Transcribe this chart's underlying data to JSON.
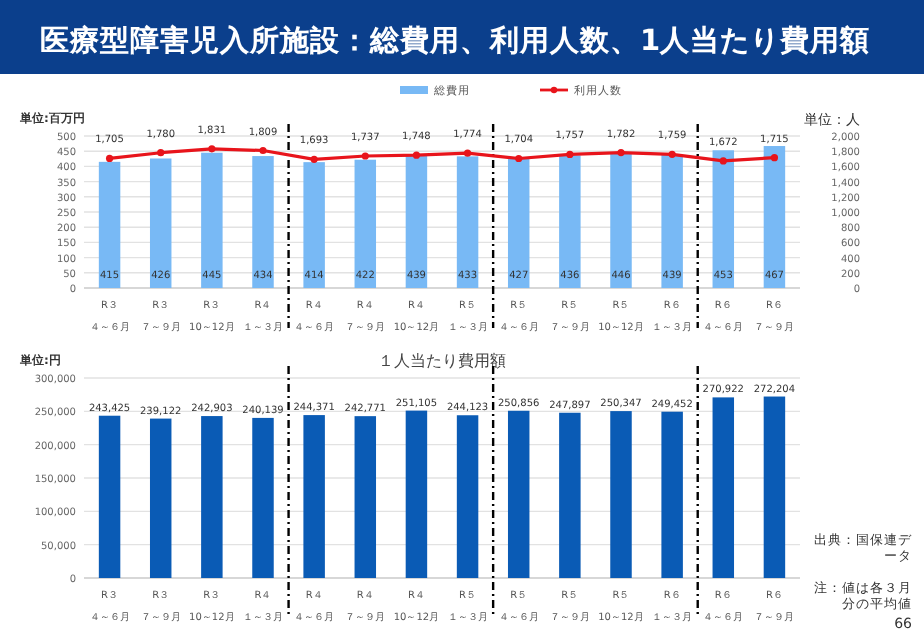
{
  "chart_data": [
    {
      "type": "bar",
      "title": "医療型障害児入所施設：総費用、利用人数、1人当たり費用額",
      "ylabel": "単位:百万円",
      "y2label": "単位：人",
      "categories": [
        "R３４～６月",
        "R３７～９月",
        "R３10～12月",
        "R４１～３月",
        "R４４～６月",
        "R４７～９月",
        "R４10～12月",
        "R５１～３月",
        "R５４～６月",
        "R５７～９月",
        "R５10～12月",
        "R６１～３月",
        "R６４～６月",
        "R６７～９月"
      ],
      "series": [
        {
          "name": "総費用",
          "type": "bar",
          "color": "#78b9f5",
          "values": [
            415,
            426,
            445,
            434,
            414,
            422,
            439,
            433,
            427,
            436,
            446,
            439,
            453,
            467
          ],
          "value_labels": [
            "415",
            "426",
            "445",
            "434",
            "414",
            "422",
            "439",
            "433",
            "427",
            "436",
            "446",
            "439",
            "453",
            "467"
          ]
        },
        {
          "name": "利用人数",
          "type": "line",
          "axis": "y2",
          "color": "#e8141b",
          "values": [
            1705,
            1780,
            1831,
            1809,
            1693,
            1737,
            1748,
            1774,
            1704,
            1757,
            1782,
            1759,
            1672,
            1715
          ],
          "value_labels": [
            "1,705",
            "1,780",
            "1,831",
            "1,809",
            "1,693",
            "1,737",
            "1,748",
            "1,774",
            "1,704",
            "1,757",
            "1,782",
            "1,759",
            "1,672",
            "1,715"
          ]
        }
      ],
      "ylim": [
        0,
        500
      ],
      "yticks": [
        0,
        50,
        100,
        150,
        200,
        250,
        300,
        350,
        400,
        450,
        500
      ],
      "y2lim": [
        0,
        2000
      ],
      "y2ticks": [
        0,
        {
          "value": 200,
          "label": "200"
        },
        {
          "value": 400,
          "label": "400"
        },
        {
          "value": 600,
          "label": "600"
        },
        {
          "value": 800,
          "label": "800"
        },
        {
          "value": 1000,
          "label": "1,000"
        },
        {
          "value": 1200,
          "label": "1,200"
        },
        {
          "value": 1400,
          "label": "1,400"
        },
        {
          "value": 1600,
          "label": "1,600"
        },
        {
          "value": 1800,
          "label": "1,800"
        },
        {
          "value": 2000,
          "label": "2,000"
        }
      ],
      "grid": "y",
      "legend": "top",
      "marker": "circle",
      "line_style": "solid"
    },
    {
      "type": "bar",
      "title": "１人当たり費用額",
      "ylabel": "単位:円",
      "categories": [
        "R３４～６月",
        "R３７～９月",
        "R３10～12月",
        "R４１～３月",
        "R４４～６月",
        "R４７～９月",
        "R４10～12月",
        "R５１～３月",
        "R５４～６月",
        "R５７～９月",
        "R５10～12月",
        "R６１～３月",
        "R６４～６月",
        "R６７～９月"
      ],
      "series": [
        {
          "color": "#0a5bb5",
          "values": [
            243425,
            239122,
            242903,
            240139,
            244371,
            242771,
            251105,
            244123,
            250856,
            247897,
            250347,
            249452,
            270922,
            272204
          ],
          "value_labels": [
            "243,425",
            "239,122",
            "242,903",
            "240,139",
            "244,371",
            "242,771",
            "251,105",
            "244,123",
            "250,856",
            "247,897",
            "250,347",
            "249,452",
            "270,922",
            "272,204"
          ]
        }
      ],
      "ylim": [
        0,
        300000
      ],
      "yticks": [
        0,
        {
          "value": 50000,
          "label": "50,000"
        },
        {
          "value": 100000,
          "label": "100,000"
        },
        {
          "value": 150000,
          "label": "150,000"
        },
        {
          "value": 200000,
          "label": "200,000"
        },
        {
          "value": 250000,
          "label": "250,000"
        },
        {
          "value": 300000,
          "label": "300,000"
        }
      ],
      "grid": "y",
      "annotations": [
        "出典：国保連データ",
        "注：値は各３月分の平均値",
        "66"
      ]
    }
  ]
}
